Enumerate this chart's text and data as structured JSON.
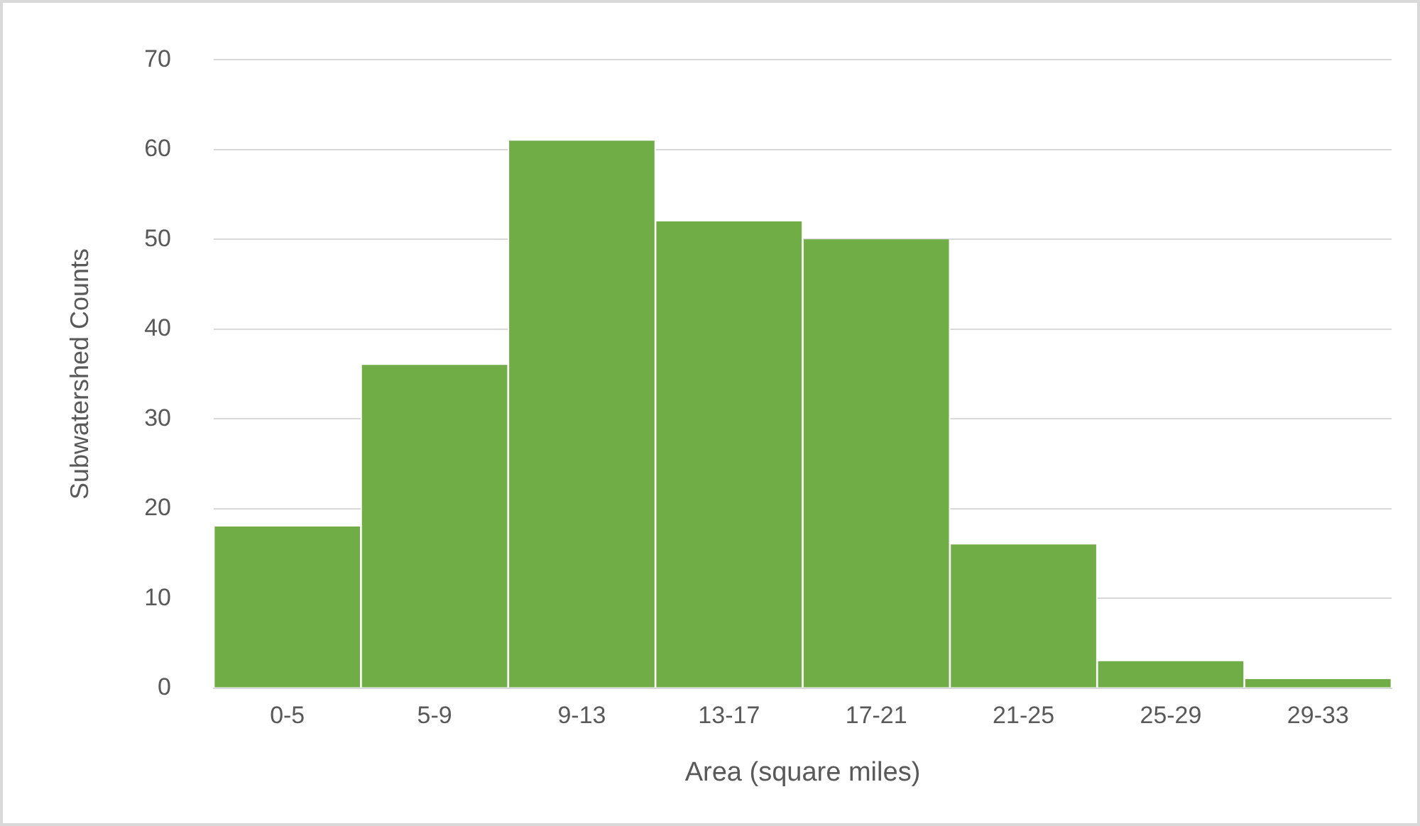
{
  "chart_data": {
    "type": "bar",
    "xlabel": "Area (square miles)",
    "ylabel": "Subwatershed Counts",
    "categories": [
      "0-5",
      "5-9",
      "9-13",
      "13-17",
      "17-21",
      "21-25",
      "25-29",
      "29-33"
    ],
    "values": [
      18,
      36,
      61,
      52,
      50,
      16,
      3,
      1
    ],
    "color": "#70ad47",
    "ylim": [
      0,
      70
    ],
    "yticks": [
      0,
      10,
      20,
      30,
      40,
      50,
      60,
      70
    ],
    "grid": "y",
    "legend": false
  }
}
